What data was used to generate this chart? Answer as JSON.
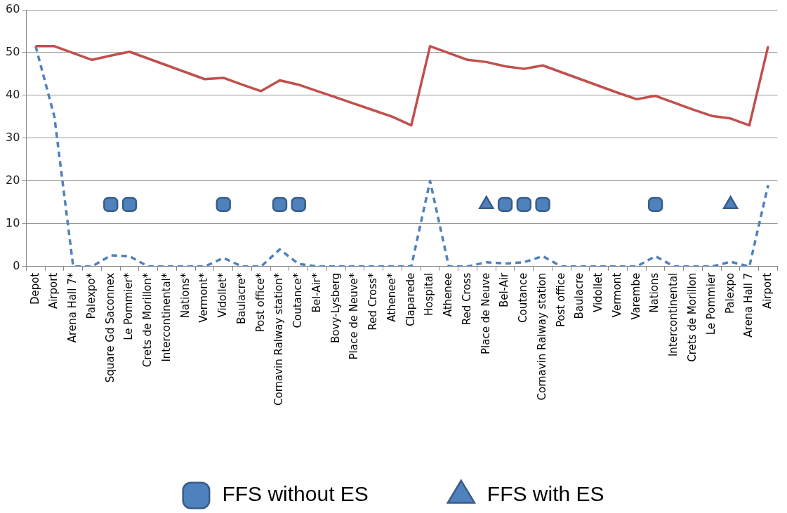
{
  "chart_data": {
    "type": "line",
    "categories": [
      "Depot",
      "Airport",
      "Arena Hall 7*",
      "Palexpo*",
      "Square Gd Saconnex",
      "Le Pommier*",
      "Crets de Morillon*",
      "Intercontinental*",
      "Nations*",
      "Vermont*",
      "Vidollet*",
      "Baulacre*",
      "Post office*",
      "Cornavin Ralway station*",
      "Coutance*",
      "Bel-Air*",
      "Bovy-Lysberg",
      "Place de Neuve*",
      "Red Cross*",
      "Athenee*",
      "Claparede",
      "Hospital",
      "Athenee",
      "Red Cross",
      "Place de Neuve",
      "Bel-Air",
      "Coutance",
      "Cornavin Ralway station",
      "Post office",
      "Baulacre",
      "Vidollet",
      "Vermont",
      "Varembe",
      "Nations",
      "Intercontinental",
      "Crets de Morillon",
      "Le Pommier",
      "Palexpo",
      "Arena Hall 7",
      "Airport"
    ],
    "series": [
      {
        "color": "#c0504d",
        "line_style": "solid",
        "marker": "none",
        "values": [
          51.5,
          51.5,
          49.9,
          48.3,
          49.3,
          50.2,
          48.6,
          47.0,
          45.4,
          43.8,
          44.1,
          42.5,
          41.0,
          43.5,
          42.5,
          41.0,
          39.5,
          38.0,
          36.5,
          35.0,
          33.0,
          51.5,
          49.9,
          48.3,
          47.8,
          46.8,
          46.2,
          47.0,
          45.4,
          43.8,
          42.2,
          40.6,
          39.1,
          39.9,
          38.3,
          36.7,
          35.2,
          34.6,
          33.0,
          51.5
        ]
      },
      {
        "color": "#4f81bd",
        "line_style": "dashed",
        "marker": "none",
        "values": [
          51.5,
          35,
          0,
          0,
          2.6,
          2.4,
          0,
          0,
          0,
          0,
          2,
          0,
          0,
          4,
          0.6,
          0,
          0,
          0,
          0,
          0,
          0,
          20,
          0,
          0,
          1,
          0.7,
          1,
          2.4,
          0,
          0,
          0,
          0,
          0,
          2.4,
          0,
          0,
          0,
          1.1,
          0,
          19
        ]
      },
      {
        "type": "scatter",
        "name": "FFS without ES",
        "color": "#4f81bd",
        "marker": "square",
        "values": [
          null,
          null,
          null,
          null,
          14.5,
          14.5,
          null,
          null,
          null,
          null,
          14.5,
          null,
          null,
          14.5,
          14.5,
          null,
          null,
          null,
          null,
          null,
          null,
          null,
          null,
          null,
          null,
          14.5,
          14.5,
          14.5,
          null,
          null,
          null,
          null,
          null,
          14.5,
          null,
          null,
          null,
          null,
          null,
          null
        ]
      },
      {
        "type": "scatter",
        "name": "FFS with ES",
        "color": "#4f81bd",
        "marker": "triangle",
        "values": [
          null,
          null,
          null,
          null,
          null,
          null,
          null,
          null,
          null,
          null,
          null,
          null,
          null,
          null,
          null,
          null,
          null,
          null,
          null,
          null,
          null,
          null,
          null,
          null,
          14.5,
          null,
          null,
          null,
          null,
          null,
          null,
          null,
          null,
          null,
          null,
          null,
          null,
          14.5,
          null,
          null
        ]
      }
    ],
    "ylim": [
      0,
      60
    ],
    "yticks": [
      0,
      10,
      20,
      30,
      40,
      50,
      60
    ],
    "grid": "y",
    "legend": "bottom"
  }
}
